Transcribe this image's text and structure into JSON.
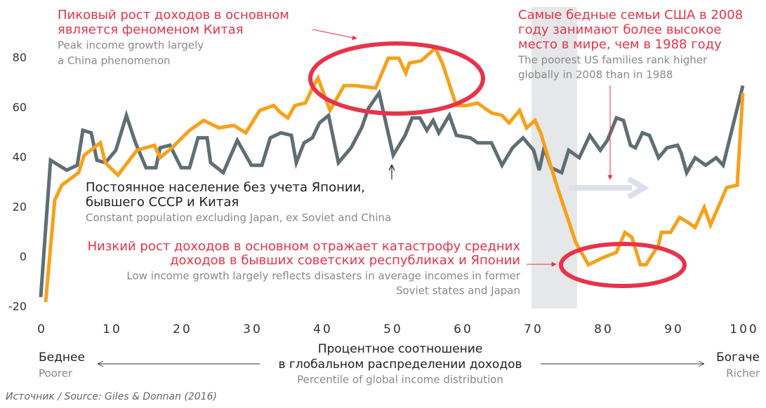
{
  "chart_data": {
    "type": "line",
    "xlim": [
      0,
      100
    ],
    "xticks": [
      0,
      10,
      20,
      30,
      40,
      50,
      60,
      70,
      80,
      90,
      100
    ],
    "ylim": [
      -25,
      100
    ],
    "yticks": [
      -20,
      0,
      20,
      40,
      60,
      80
    ],
    "series": [
      {
        "color": "#5f6e75",
        "x": [
          0,
          1.4,
          3.7,
          5.2,
          6,
          7.2,
          8,
          9.2,
          10.7,
          12.2,
          13.5,
          15,
          16.4,
          17,
          18.4,
          20,
          21.2,
          22.4,
          23.7,
          24.2,
          26,
          28,
          30,
          31.5,
          32.7,
          34.2,
          35.7,
          36.4,
          37.5,
          38.7,
          39.7,
          41,
          42.4,
          44.2,
          45.7,
          46.7,
          48.2,
          50.2,
          51.9,
          52.9,
          54,
          55,
          55.9,
          56.7,
          58.2,
          59.2,
          61.2,
          62.2,
          64.2,
          65.7,
          67.2,
          68.7,
          70.2,
          71,
          71.7,
          72.7,
          74.2,
          75.2,
          76.7,
          78.2,
          79.7,
          80.7,
          82,
          83,
          84,
          84.7,
          85.7,
          86.7,
          88,
          89.2,
          90.7,
          91.2,
          92,
          93.2,
          94.7,
          96.2,
          97.2,
          100
        ],
        "values": [
          -16,
          39,
          35,
          37,
          51,
          50,
          39,
          38,
          43,
          57,
          46,
          36,
          36,
          44,
          45,
          36,
          36,
          48,
          48,
          38,
          34,
          47,
          37,
          37,
          48,
          50,
          49,
          38,
          46,
          48,
          54,
          57,
          38,
          44,
          52,
          60,
          66,
          41,
          49,
          56,
          56,
          51,
          55,
          50,
          57,
          49,
          48,
          46,
          46,
          37,
          44,
          48,
          43,
          35,
          44,
          36,
          34,
          43,
          40,
          49,
          43,
          47,
          56,
          55,
          45,
          44,
          50,
          49,
          40,
          44,
          45,
          42,
          34,
          40,
          37,
          40,
          37,
          69
        ]
      },
      {
        "color": "#f7a11a",
        "x": [
          0.7,
          2,
          3,
          5.4,
          6.2,
          8.5,
          9.2,
          11,
          13.7,
          16.2,
          17,
          18.7,
          21.2,
          23.2,
          25.4,
          27.5,
          29.2,
          31.2,
          33.2,
          34.2,
          35.2,
          36.2,
          37.7,
          38.7,
          39.5,
          41.2,
          43.2,
          44.7,
          47.7,
          49.5,
          51,
          52,
          52.5,
          54.2,
          56.2,
          57.2,
          59.2,
          60.7,
          62.2,
          64.2,
          65.7,
          66.7,
          68.2,
          69.2,
          70.4,
          71.2,
          73.7,
          76.2,
          78,
          80.2,
          82,
          83.2,
          84.2,
          85.4,
          86.2,
          88,
          88.4,
          89.7,
          91,
          92.2,
          93.2,
          94.5,
          95.4,
          97.7,
          99.2,
          100
        ],
        "values": [
          -18,
          23,
          29,
          34,
          41,
          46,
          38,
          33,
          43,
          45,
          40,
          44,
          51,
          55,
          52,
          53,
          50,
          59,
          61,
          58,
          56,
          61,
          62,
          68,
          72,
          59,
          69,
          69,
          68,
          80,
          80,
          74,
          78,
          79,
          84,
          78,
          61,
          61,
          62,
          58,
          57,
          54,
          59,
          52,
          55,
          50,
          27,
          6,
          -3,
          0,
          2,
          10,
          8,
          -3,
          -3,
          5,
          10,
          10,
          16,
          14,
          12,
          20,
          13,
          28,
          29,
          66
        ]
      }
    ],
    "annotations": [
      {
        "ru": [
          "Пиковый рост доходов в основном",
          "является феноменом Китая"
        ],
        "en": [
          "Peak income growth largely",
          "a China phenomenon"
        ]
      },
      {
        "ru": [
          "Самые бедные семьи США в 2008",
          "году занимают более высокое",
          "место в мире, чем в 1988 году"
        ],
        "en": [
          "The poorest US families rank higher",
          "globally in 2008 than in 1988"
        ]
      },
      {
        "ru": [
          "Постоянное население без учета Японии,",
          "бывшего СССР и Китая"
        ],
        "en": [
          "Constant population excluding Japan, ex Soviet and China"
        ]
      },
      {
        "ru": [
          "Низкий рост доходов в основном отражает катастрофу средних",
          "доходов в бывших советских республиках и Японии"
        ],
        "en": [
          "Low income growth largely reflects disasters in average incomes in former",
          "Soviet states and Japan"
        ]
      }
    ],
    "x_label": {
      "ru": [
        "Процентное соотношение",
        "в глобальном распределении доходов"
      ],
      "en": "Percentile of global income distribution"
    },
    "left_label": {
      "ru": "Беднее",
      "en": "Poorer"
    },
    "right_label": {
      "ru": "Богаче",
      "en": "Richer"
    },
    "source": "Источник / Source: Giles & Donnan (2016)"
  }
}
